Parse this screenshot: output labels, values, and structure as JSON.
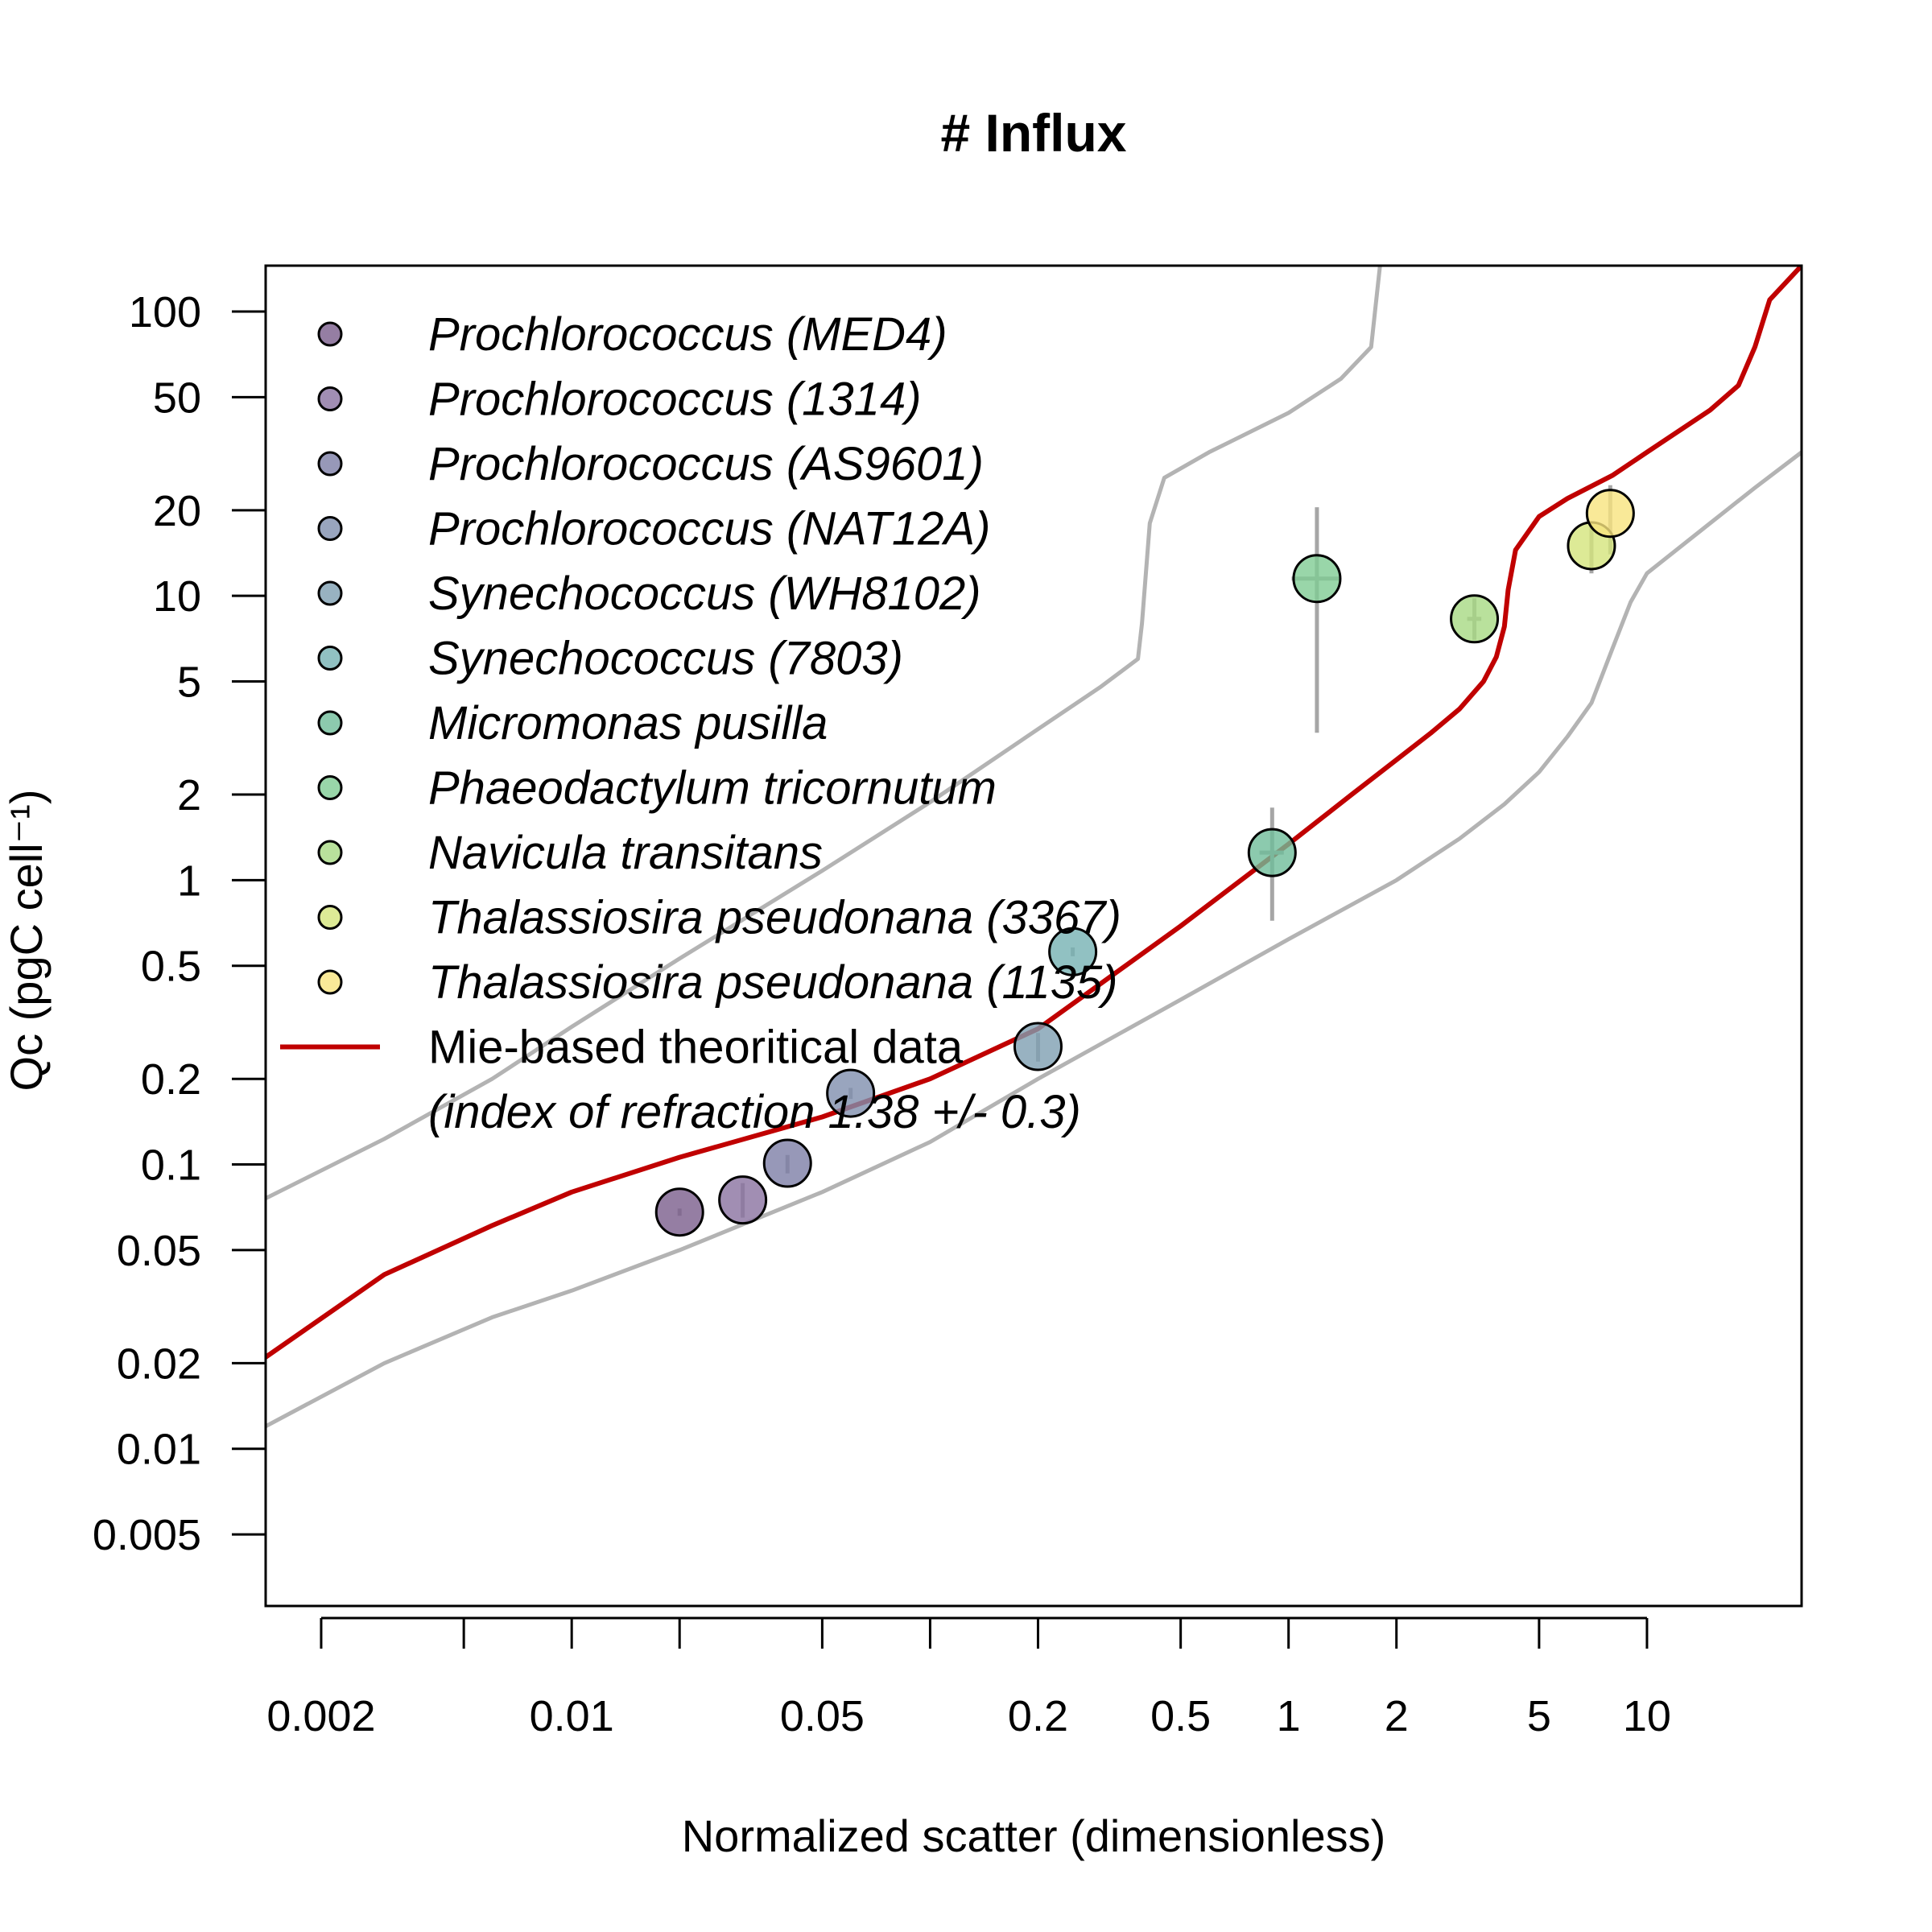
{
  "chart_data": {
    "type": "scatter",
    "title": "# Influx",
    "xlabel": "Normalized scatter (dimensionless)",
    "ylabel": "Qc (pgC cell⁻¹)",
    "x_scale": "log",
    "y_scale": "log",
    "xlim": [
      0.0014,
      27
    ],
    "ylim": [
      0.0028,
      145
    ],
    "x_ticks": [
      0.002,
      0.005,
      0.01,
      0.02,
      0.05,
      0.1,
      0.2,
      0.5,
      1,
      2,
      5,
      10
    ],
    "x_tick_labels": [
      "0.002",
      "",
      "0.01",
      "",
      "0.05",
      "",
      "0.2",
      "0.5",
      "1",
      "2",
      "5",
      "10"
    ],
    "y_ticks": [
      100,
      50,
      20,
      10,
      5,
      2,
      1,
      0.5,
      0.2,
      0.1,
      0.05,
      0.02,
      0.01,
      0.005
    ],
    "y_tick_labels": [
      "100",
      "50",
      "20",
      "10",
      "5",
      "2",
      "1",
      "0.5",
      "0.2",
      "0.1",
      "0.05",
      "0.02",
      "0.01",
      "0.005"
    ],
    "grid": false,
    "legend_position": "top-left",
    "points": [
      {
        "name": "Prochlorococcus (MED4)",
        "x": 0.02,
        "y": 0.068,
        "color": "#7b5e8c",
        "xerr": [
          0.02,
          0.02
        ],
        "yerr": [
          0.066,
          0.07
        ]
      },
      {
        "name": "Prochlorococcus (1314)",
        "x": 0.03,
        "y": 0.075,
        "color": "#8a72a0",
        "xerr": [
          0.03,
          0.03
        ],
        "yerr": [
          0.065,
          0.086
        ]
      },
      {
        "name": "Prochlorococcus (AS9601)",
        "x": 0.04,
        "y": 0.101,
        "color": "#7d7ea6",
        "xerr": [
          0.04,
          0.04
        ],
        "yerr": [
          0.093,
          0.108
        ]
      },
      {
        "name": "Prochlorococcus (NAT12A)",
        "x": 0.06,
        "y": 0.178,
        "color": "#7f8fae",
        "xerr": [
          0.06,
          0.06
        ],
        "yerr": [
          0.17,
          0.186
        ]
      },
      {
        "name": "Synechococcus (WH8102)",
        "x": 0.2,
        "y": 0.26,
        "color": "#7e9fb1",
        "xerr": [
          0.2,
          0.2
        ],
        "yerr": [
          0.23,
          0.29
        ]
      },
      {
        "name": "Synechococcus (7803)",
        "x": 0.25,
        "y": 0.56,
        "color": "#76b1b3",
        "xerr": [
          0.25,
          0.25
        ],
        "yerr": [
          0.54,
          0.58
        ]
      },
      {
        "name": "Micromonas pusilla",
        "x": 0.9,
        "y": 1.25,
        "color": "#6fbd9a",
        "xerr": [
          0.83,
          0.97
        ],
        "yerr": [
          0.72,
          1.8
        ]
      },
      {
        "name": "Phaeodactylum tricornutum",
        "x": 1.2,
        "y": 11.5,
        "color": "#7fcc93",
        "xerr": [
          1.02,
          1.4
        ],
        "yerr": [
          3.3,
          20.5
        ]
      },
      {
        "name": "Navicula transitans",
        "x": 3.3,
        "y": 8.3,
        "color": "#a8da83",
        "xerr": [
          3.15,
          3.45
        ],
        "yerr": [
          7.0,
          9.8
        ]
      },
      {
        "name": "Thalassiosira pseudonana (3367)",
        "x": 7.0,
        "y": 15.0,
        "color": "#d5e57c",
        "xerr": [
          7.0,
          7.0
        ],
        "yerr": [
          12.0,
          18.0
        ]
      },
      {
        "name": "Thalassiosira pseudonana (1135)",
        "x": 7.9,
        "y": 19.5,
        "color": "#f7e37e",
        "xerr": [
          7.9,
          7.9
        ],
        "yerr": [
          14.0,
          24.5
        ]
      }
    ],
    "series": [
      {
        "name": "Mie-based theoritical data",
        "color": "#c00000",
        "x": [
          0.0014,
          0.003,
          0.006,
          0.01,
          0.02,
          0.05,
          0.1,
          0.2,
          0.5,
          1,
          1.5,
          2,
          2.5,
          3,
          3.5,
          3.8,
          4.0,
          4.1,
          4.3,
          5,
          6,
          8,
          10,
          15,
          18,
          20,
          22,
          27
        ],
        "y": [
          0.021,
          0.041,
          0.061,
          0.08,
          0.106,
          0.147,
          0.2,
          0.3,
          0.69,
          1.34,
          2.0,
          2.65,
          3.3,
          4.0,
          5.0,
          6.1,
          7.8,
          10.5,
          14.5,
          19.0,
          22.0,
          26.5,
          32.0,
          45.0,
          55.0,
          75.0,
          110.0,
          145.0
        ]
      },
      {
        "name": "upper bound (refractive index + 0.3)",
        "color": "#b3b3b3",
        "x": [
          0.0014,
          0.003,
          0.006,
          0.01,
          0.02,
          0.05,
          0.1,
          0.2,
          0.3,
          0.38,
          0.39,
          0.41,
          0.45,
          0.6,
          1.0,
          1.4,
          1.7,
          1.75,
          1.8
        ],
        "y": [
          0.076,
          0.123,
          0.2,
          0.305,
          0.53,
          1.08,
          1.88,
          3.4,
          4.8,
          6.0,
          8.0,
          18.0,
          26.0,
          32.0,
          44.0,
          58.0,
          75.0,
          105.0,
          145.0
        ]
      },
      {
        "name": "lower bound (refractive index - 0.3)",
        "color": "#b3b3b3",
        "x": [
          0.0014,
          0.003,
          0.006,
          0.01,
          0.02,
          0.05,
          0.1,
          0.2,
          0.5,
          1,
          2,
          3,
          4,
          5,
          6,
          7,
          8,
          9,
          10,
          15,
          20,
          27
        ],
        "y": [
          0.012,
          0.02,
          0.029,
          0.036,
          0.05,
          0.08,
          0.12,
          0.2,
          0.38,
          0.62,
          1.0,
          1.4,
          1.85,
          2.4,
          3.2,
          4.2,
          6.5,
          9.5,
          12.0,
          18.0,
          24.0,
          32.0
        ]
      }
    ],
    "legend": [
      {
        "label": "Prochlorococcus (MED4)",
        "kind": "point",
        "color": "#7b5e8c"
      },
      {
        "label": "Prochlorococcus (1314)",
        "kind": "point",
        "color": "#8a72a0"
      },
      {
        "label": "Prochlorococcus (AS9601)",
        "kind": "point",
        "color": "#7d7ea6"
      },
      {
        "label": "Prochlorococcus (NAT12A)",
        "kind": "point",
        "color": "#7f8fae"
      },
      {
        "label": "Synechococcus (WH8102)",
        "kind": "point",
        "color": "#7e9fb1"
      },
      {
        "label": "Synechococcus (7803)",
        "kind": "point",
        "color": "#76b1b3"
      },
      {
        "label": "Micromonas pusilla",
        "kind": "point",
        "color": "#6fbd9a"
      },
      {
        "label": "Phaeodactylum tricornutum",
        "kind": "point",
        "color": "#7fcc93"
      },
      {
        "label": "Navicula transitans",
        "kind": "point",
        "color": "#a8da83"
      },
      {
        "label": "Thalassiosira pseudonana (3367)",
        "kind": "point",
        "color": "#d5e57c"
      },
      {
        "label": "Thalassiosira pseudonana (1135)",
        "kind": "point",
        "color": "#f7e37e"
      },
      {
        "label": "Mie-based theoritical data",
        "kind": "line",
        "color": "#c00000"
      },
      {
        "label": "(index of refraction 1.38 +/- 0.3)",
        "kind": "text",
        "color": ""
      }
    ],
    "errorbar_color": "#a6a6a6"
  }
}
